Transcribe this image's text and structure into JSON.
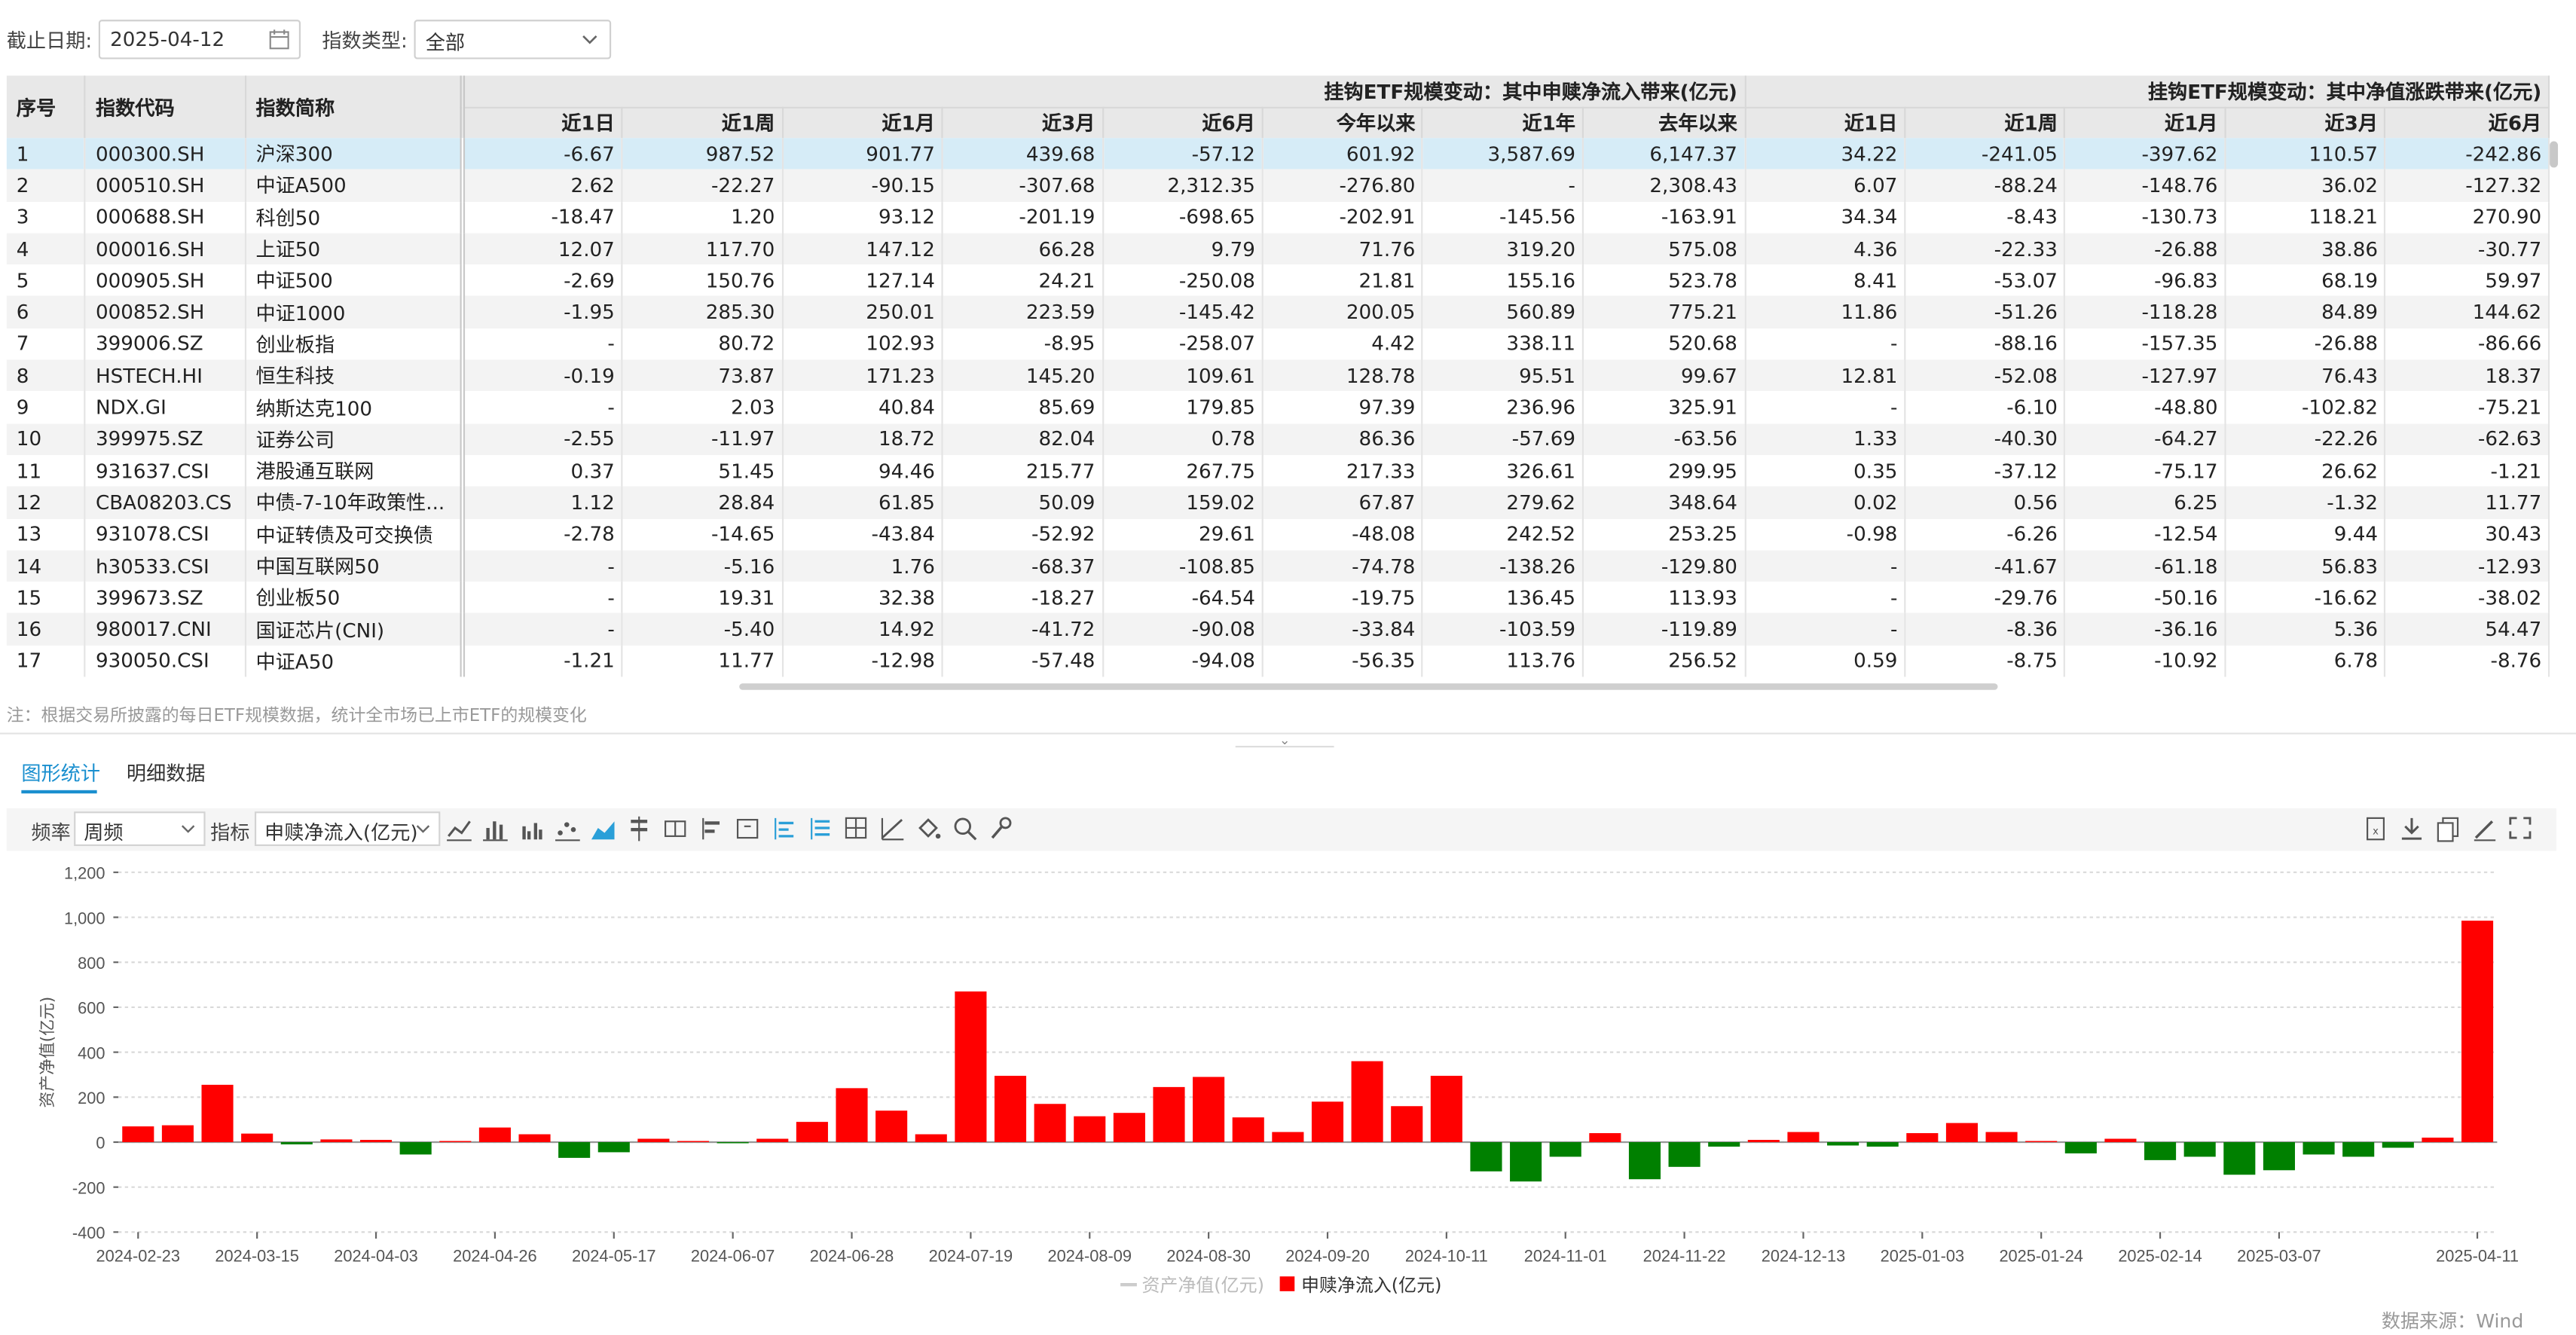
{
  "filters": {
    "date_label": "截止日期:",
    "date_value": "2025-04-12",
    "type_label": "指数类型:",
    "type_value": "全部"
  },
  "table": {
    "fixed_headers": [
      "序号",
      "指数代码",
      "指数简称"
    ],
    "group1_title": "挂钩ETF规模变动：其中申赎净流入带来(亿元)",
    "group2_title": "挂钩ETF规模变动：其中净值涨跌带来(亿元)",
    "group1_cols": [
      "近1日",
      "近1周",
      "近1月",
      "近3月",
      "近6月",
      "今年以来",
      "近1年",
      "去年以来"
    ],
    "group2_cols": [
      "近1日",
      "近1周",
      "近1月",
      "近3月",
      "近6月"
    ],
    "rows": [
      [
        "1",
        "000300.SH",
        "沪深300",
        "-6.67",
        "987.52",
        "901.77",
        "439.68",
        "-57.12",
        "601.92",
        "3,587.69",
        "6,147.37",
        "34.22",
        "-241.05",
        "-397.62",
        "110.57",
        "-242.86"
      ],
      [
        "2",
        "000510.SH",
        "中证A500",
        "2.62",
        "-22.27",
        "-90.15",
        "-307.68",
        "2,312.35",
        "-276.80",
        "-",
        "2,308.43",
        "6.07",
        "-88.24",
        "-148.76",
        "36.02",
        "-127.32"
      ],
      [
        "3",
        "000688.SH",
        "科创50",
        "-18.47",
        "1.20",
        "93.12",
        "-201.19",
        "-698.65",
        "-202.91",
        "-145.56",
        "-163.91",
        "34.34",
        "-8.43",
        "-130.73",
        "118.21",
        "270.90"
      ],
      [
        "4",
        "000016.SH",
        "上证50",
        "12.07",
        "117.70",
        "147.12",
        "66.28",
        "9.79",
        "71.76",
        "319.20",
        "575.08",
        "4.36",
        "-22.33",
        "-26.88",
        "38.86",
        "-30.77"
      ],
      [
        "5",
        "000905.SH",
        "中证500",
        "-2.69",
        "150.76",
        "127.14",
        "24.21",
        "-250.08",
        "21.81",
        "155.16",
        "523.78",
        "8.41",
        "-53.07",
        "-96.83",
        "68.19",
        "59.97"
      ],
      [
        "6",
        "000852.SH",
        "中证1000",
        "-1.95",
        "285.30",
        "250.01",
        "223.59",
        "-145.42",
        "200.05",
        "560.89",
        "775.21",
        "11.86",
        "-51.26",
        "-118.28",
        "84.89",
        "144.62"
      ],
      [
        "7",
        "399006.SZ",
        "创业板指",
        "-",
        "80.72",
        "102.93",
        "-8.95",
        "-258.07",
        "4.42",
        "338.11",
        "520.68",
        "-",
        "-88.16",
        "-157.35",
        "-26.88",
        "-86.66"
      ],
      [
        "8",
        "HSTECH.HI",
        "恒生科技",
        "-0.19",
        "73.87",
        "171.23",
        "145.20",
        "109.61",
        "128.78",
        "95.51",
        "99.67",
        "12.81",
        "-52.08",
        "-127.97",
        "76.43",
        "18.37"
      ],
      [
        "9",
        "NDX.GI",
        "纳斯达克100",
        "-",
        "2.03",
        "40.84",
        "85.69",
        "179.85",
        "97.39",
        "236.96",
        "325.91",
        "-",
        "-6.10",
        "-48.80",
        "-102.82",
        "-75.21"
      ],
      [
        "10",
        "399975.SZ",
        "证券公司",
        "-2.55",
        "-11.97",
        "18.72",
        "82.04",
        "0.78",
        "86.36",
        "-57.69",
        "-63.56",
        "1.33",
        "-40.30",
        "-64.27",
        "-22.26",
        "-62.63"
      ],
      [
        "11",
        "931637.CSI",
        "港股通互联网",
        "0.37",
        "51.45",
        "94.46",
        "215.77",
        "267.75",
        "217.33",
        "326.61",
        "299.95",
        "0.35",
        "-37.12",
        "-75.17",
        "26.62",
        "-1.21"
      ],
      [
        "12",
        "CBA08203.CS",
        "中债-7-10年政策性...",
        "1.12",
        "28.84",
        "61.85",
        "50.09",
        "159.02",
        "67.87",
        "279.62",
        "348.64",
        "0.02",
        "0.56",
        "6.25",
        "-1.32",
        "11.77"
      ],
      [
        "13",
        "931078.CSI",
        "中证转债及可交换债",
        "-2.78",
        "-14.65",
        "-43.84",
        "-52.92",
        "29.61",
        "-48.08",
        "242.52",
        "253.25",
        "-0.98",
        "-6.26",
        "-12.54",
        "9.44",
        "30.43"
      ],
      [
        "14",
        "h30533.CSI",
        "中国互联网50",
        "-",
        "-5.16",
        "1.76",
        "-68.37",
        "-108.85",
        "-74.78",
        "-138.26",
        "-129.80",
        "-",
        "-41.67",
        "-61.18",
        "56.83",
        "-12.93"
      ],
      [
        "15",
        "399673.SZ",
        "创业板50",
        "-",
        "19.31",
        "32.38",
        "-18.27",
        "-64.54",
        "-19.75",
        "136.45",
        "113.93",
        "-",
        "-29.76",
        "-50.16",
        "-16.62",
        "-38.02"
      ],
      [
        "16",
        "980017.CNI",
        "国证芯片(CNI)",
        "-",
        "-5.40",
        "14.92",
        "-41.72",
        "-90.08",
        "-33.84",
        "-103.59",
        "-119.89",
        "-",
        "-8.36",
        "-36.16",
        "5.36",
        "54.47"
      ],
      [
        "17",
        "930050.CSI",
        "中证A50",
        "-1.21",
        "11.77",
        "-12.98",
        "-57.48",
        "-94.08",
        "-56.35",
        "113.76",
        "256.52",
        "0.59",
        "-8.75",
        "-10.92",
        "6.78",
        "-8.76"
      ]
    ]
  },
  "note": "注：根据交易所披露的每日ETF规模数据，统计全市场已上市ETF的规模变化",
  "tabs": [
    "图形统计",
    "明细数据"
  ],
  "toolbar": {
    "freq_label": "频率",
    "freq_value": "周频",
    "metric_label": "指标",
    "metric_value": "申赎净流入(亿元)",
    "chart_icons": [
      "line-chart-icon",
      "bar-chart-icon",
      "grouped-bar-icon",
      "scatter-icon",
      "area-chart-icon",
      "stacked-icon",
      "percent-bar-icon",
      "horizontal-bar-icon",
      "dual-axis-icon",
      "align-icon",
      "list-icon",
      "grid-icon",
      "trend-icon",
      "fill-icon",
      "zoom-icon",
      "wrench-icon"
    ],
    "right_icons": [
      "excel-export-icon",
      "download-icon",
      "copy-icon",
      "edit-icon",
      "fullscreen-icon"
    ]
  },
  "chart_data": {
    "type": "bar",
    "ylabel": "资产净值(亿元)",
    "ylim": [
      -400,
      1200
    ],
    "yticks": [
      "1,200",
      "1,000",
      "800",
      "600",
      "400",
      "200",
      "0",
      "-200",
      "-400"
    ],
    "ytick_values": [
      1200,
      1000,
      800,
      600,
      400,
      200,
      0,
      -200,
      -400
    ],
    "grid": true,
    "legend_position": "bottom",
    "xtick_labels": [
      "2024-02-23",
      "2024-03-15",
      "2024-04-03",
      "2024-04-26",
      "2024-05-17",
      "2024-06-07",
      "2024-06-28",
      "2024-07-19",
      "2024-08-09",
      "2024-08-30",
      "2024-09-20",
      "2024-10-11",
      "2024-11-01",
      "2024-11-22",
      "2024-12-13",
      "2025-01-03",
      "2025-01-24",
      "2025-02-14",
      "2025-03-07",
      "2025-04-11"
    ],
    "xtick_indices": [
      0,
      3,
      6,
      9,
      12,
      15,
      18,
      21,
      24,
      27,
      30,
      33,
      36,
      39,
      42,
      45,
      48,
      51,
      54,
      59
    ],
    "series": [
      {
        "name": "资产净值(亿元)",
        "color": "#cccccc",
        "values": []
      },
      {
        "name": "申赎净流入(亿元)",
        "color": "#ff0000",
        "negative_color": "#008000",
        "values": [
          70,
          75,
          255,
          38,
          -10,
          12,
          10,
          -55,
          5,
          65,
          35,
          -70,
          -45,
          15,
          5,
          -5,
          15,
          90,
          240,
          140,
          35,
          670,
          295,
          170,
          115,
          130,
          245,
          290,
          110,
          45,
          180,
          360,
          160,
          295,
          -130,
          -175,
          -65,
          40,
          -165,
          -110,
          -20,
          10,
          45,
          -15,
          -20,
          40,
          85,
          45,
          5,
          -50,
          15,
          -80,
          -65,
          -145,
          -125,
          -55,
          -65,
          -25,
          20,
          985
        ]
      }
    ]
  },
  "source": "数据来源：Wind"
}
